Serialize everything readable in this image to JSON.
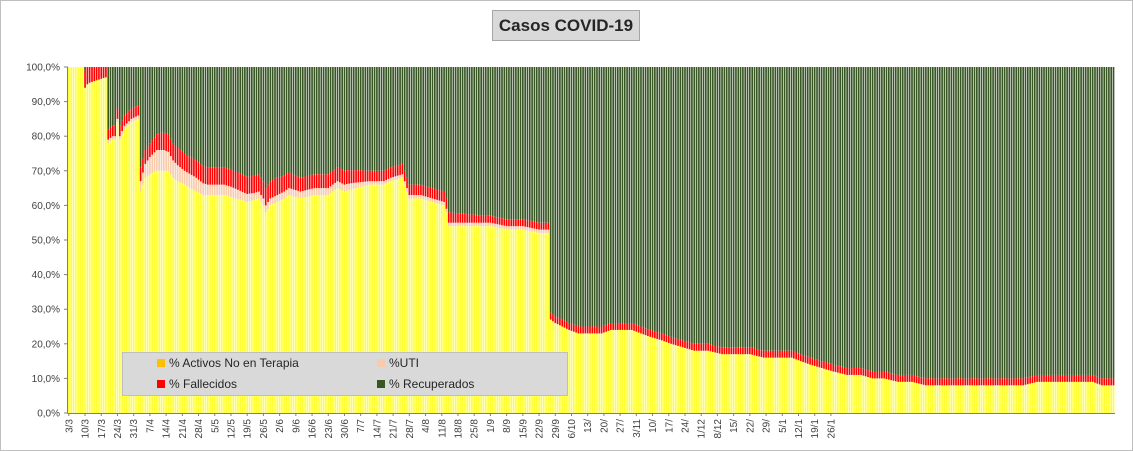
{
  "chart_data": {
    "type": "stacked-bar",
    "title": "Casos  COVID-19",
    "xlabel": "",
    "ylabel": "",
    "ylim": [
      0,
      100
    ],
    "ytick_labels": [
      "0,0%",
      "10,0%",
      "20,0%",
      "30,0%",
      "40,0%",
      "50,0%",
      "60,0%",
      "70,0%",
      "80,0%",
      "90,0%",
      "100,0%"
    ],
    "x_tick_labels": [
      "3/3",
      "10/3",
      "17/3",
      "24/3",
      "31/3",
      "7/4",
      "14/4",
      "21/4",
      "28/4",
      "5/5",
      "12/5",
      "19/5",
      "26/5",
      "2/6",
      "9/6",
      "16/6",
      "23/6",
      "30/6",
      "7/7",
      "14/7",
      "21/7",
      "28/7",
      "4/8",
      "11/8",
      "18/8",
      "25/8",
      "1/9",
      "8/9",
      "15/9",
      "22/9",
      "29/9",
      "6/10",
      "13/",
      "20/",
      "27/",
      "3/11",
      "10/",
      "17/",
      "24/",
      "1/12",
      "8/12",
      "15/",
      "22/",
      "29/",
      "5/1",
      "12/1",
      "19/1",
      "26/1"
    ],
    "legend_position": "bottom-left inside plot",
    "legend": {
      "activos": "% Activos No en Terapia",
      "uti": "%UTI",
      "fallecidos": "% Fallecidos",
      "recuperados": "% Recuperados"
    },
    "colors": {
      "activos": "#ffff33",
      "activos_swatch": "#ffc000",
      "uti": "#f8cbad",
      "fallecidos": "#ff0000",
      "recuperados": "#375623"
    },
    "series_keypoints_note_free": true,
    "series": [
      {
        "name": "% Activos No en Terapia",
        "key": "activos",
        "points": [
          [
            0,
            100
          ],
          [
            6,
            100
          ],
          [
            7,
            94
          ],
          [
            9,
            96
          ],
          [
            12,
            97
          ],
          [
            16,
            98
          ],
          [
            17,
            78
          ],
          [
            19,
            79
          ],
          [
            20,
            79
          ],
          [
            21,
            84
          ],
          [
            22,
            79
          ],
          [
            24,
            82
          ],
          [
            27,
            84
          ],
          [
            30,
            85
          ],
          [
            31,
            64
          ],
          [
            33,
            68
          ],
          [
            35,
            69
          ],
          [
            38,
            70
          ],
          [
            41,
            70
          ],
          [
            43,
            70
          ],
          [
            45,
            68
          ],
          [
            47,
            67
          ],
          [
            50,
            66
          ],
          [
            55,
            64
          ],
          [
            58,
            63
          ],
          [
            62,
            63
          ],
          [
            67,
            63
          ],
          [
            72,
            62
          ],
          [
            77,
            61
          ],
          [
            82,
            62
          ],
          [
            84,
            60
          ],
          [
            85,
            58
          ],
          [
            87,
            60
          ],
          [
            90,
            61
          ],
          [
            93,
            62
          ],
          [
            95,
            63
          ],
          [
            100,
            62
          ],
          [
            106,
            63
          ],
          [
            112,
            63
          ],
          [
            116,
            65
          ],
          [
            119,
            64
          ],
          [
            124,
            65
          ],
          [
            130,
            66
          ],
          [
            136,
            66
          ],
          [
            139,
            67
          ],
          [
            144,
            68
          ],
          [
            145,
            66
          ],
          [
            147,
            62
          ],
          [
            152,
            62
          ],
          [
            157,
            61
          ],
          [
            162,
            60
          ],
          [
            163,
            58
          ],
          [
            164,
            54
          ],
          [
            168,
            54
          ],
          [
            175,
            54
          ],
          [
            182,
            54
          ],
          [
            189,
            53
          ],
          [
            196,
            53
          ],
          [
            203,
            52
          ],
          [
            206,
            52
          ],
          [
            207,
            52
          ],
          [
            208,
            27
          ],
          [
            210,
            26
          ],
          [
            213,
            25
          ],
          [
            216,
            24
          ],
          [
            220,
            23
          ],
          [
            225,
            23
          ],
          [
            230,
            23
          ],
          [
            234,
            24
          ],
          [
            238,
            24
          ],
          [
            243,
            24
          ],
          [
            247,
            23
          ],
          [
            251,
            22
          ],
          [
            256,
            21
          ],
          [
            260,
            20
          ],
          [
            265,
            19
          ],
          [
            270,
            18
          ],
          [
            276,
            18
          ],
          [
            282,
            17
          ],
          [
            288,
            17
          ],
          [
            294,
            17
          ],
          [
            300,
            16
          ],
          [
            306,
            16
          ],
          [
            312,
            16
          ],
          [
            316,
            15
          ],
          [
            320,
            14
          ],
          [
            325,
            13
          ],
          [
            330,
            12
          ],
          [
            336,
            11
          ],
          [
            342,
            11
          ],
          [
            347,
            10
          ],
          [
            352,
            10
          ],
          [
            358,
            9
          ],
          [
            364,
            9
          ],
          [
            370,
            8
          ],
          [
            376,
            8
          ],
          [
            382,
            8
          ],
          [
            388,
            8
          ],
          [
            394,
            8
          ],
          [
            400,
            8
          ],
          [
            406,
            8
          ],
          [
            412,
            8
          ],
          [
            418,
            9
          ],
          [
            424,
            9
          ],
          [
            430,
            9
          ],
          [
            436,
            9
          ],
          [
            442,
            9
          ],
          [
            446,
            8
          ],
          [
            451,
            8
          ]
        ]
      },
      {
        "name": "%UTI",
        "key": "uti",
        "points": [
          [
            0,
            0
          ],
          [
            16,
            0
          ],
          [
            17,
            1
          ],
          [
            30,
            1
          ],
          [
            31,
            3
          ],
          [
            33,
            4
          ],
          [
            35,
            5
          ],
          [
            38,
            6
          ],
          [
            41,
            6
          ],
          [
            45,
            5
          ],
          [
            50,
            4
          ],
          [
            55,
            4
          ],
          [
            60,
            3
          ],
          [
            70,
            3
          ],
          [
            80,
            2
          ],
          [
            90,
            2
          ],
          [
            100,
            2
          ],
          [
            110,
            2
          ],
          [
            120,
            2
          ],
          [
            130,
            1
          ],
          [
            140,
            1
          ],
          [
            150,
            1
          ],
          [
            160,
            1
          ],
          [
            163,
            1
          ],
          [
            164,
            1
          ],
          [
            180,
            1
          ],
          [
            207,
            1
          ],
          [
            208,
            0
          ],
          [
            451,
            0
          ]
        ]
      },
      {
        "name": "% Fallecidos",
        "key": "fallecidos",
        "points": [
          [
            0,
            0
          ],
          [
            6,
            0
          ],
          [
            7,
            5
          ],
          [
            16,
            3
          ],
          [
            17,
            3
          ],
          [
            30,
            3
          ],
          [
            31,
            4
          ],
          [
            35,
            4
          ],
          [
            40,
            5
          ],
          [
            45,
            5
          ],
          [
            50,
            5
          ],
          [
            60,
            5
          ],
          [
            70,
            5
          ],
          [
            80,
            5
          ],
          [
            90,
            5
          ],
          [
            100,
            4
          ],
          [
            110,
            4
          ],
          [
            120,
            4
          ],
          [
            130,
            3
          ],
          [
            140,
            3
          ],
          [
            150,
            3
          ],
          [
            160,
            3
          ],
          [
            163,
            3
          ],
          [
            164,
            3
          ],
          [
            180,
            2
          ],
          [
            207,
            2
          ],
          [
            208,
            2
          ],
          [
            230,
            2
          ],
          [
            260,
            2
          ],
          [
            300,
            2
          ],
          [
            330,
            2
          ],
          [
            360,
            2
          ],
          [
            400,
            2
          ],
          [
            451,
            2
          ]
        ]
      }
    ],
    "n_bars": 452,
    "recuperados_rule": "remainder to 100%"
  }
}
